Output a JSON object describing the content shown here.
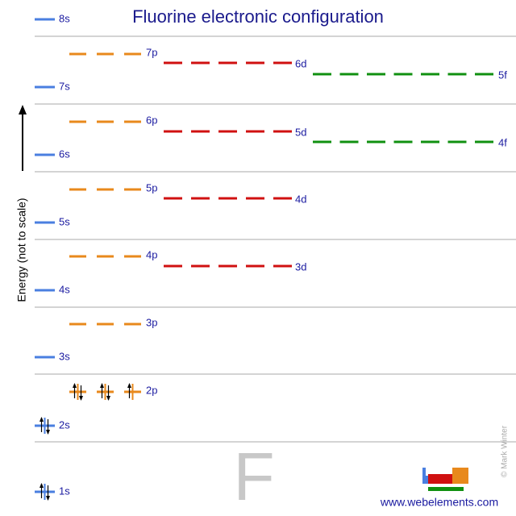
{
  "title": "Fluorine electronic configuration",
  "axis_label": "Energy (not to scale)",
  "orbitals": [
    "1s",
    "2s",
    "2p",
    "3s",
    "3p",
    "4s",
    "3d",
    "4p",
    "5s",
    "4d",
    "5p",
    "6s",
    "4f",
    "5d",
    "6p",
    "7s",
    "5f",
    "6d",
    "7p",
    "8s"
  ],
  "element_symbol": "F",
  "copyright": "© Mark Winter",
  "url": "www.webelements.com"
}
